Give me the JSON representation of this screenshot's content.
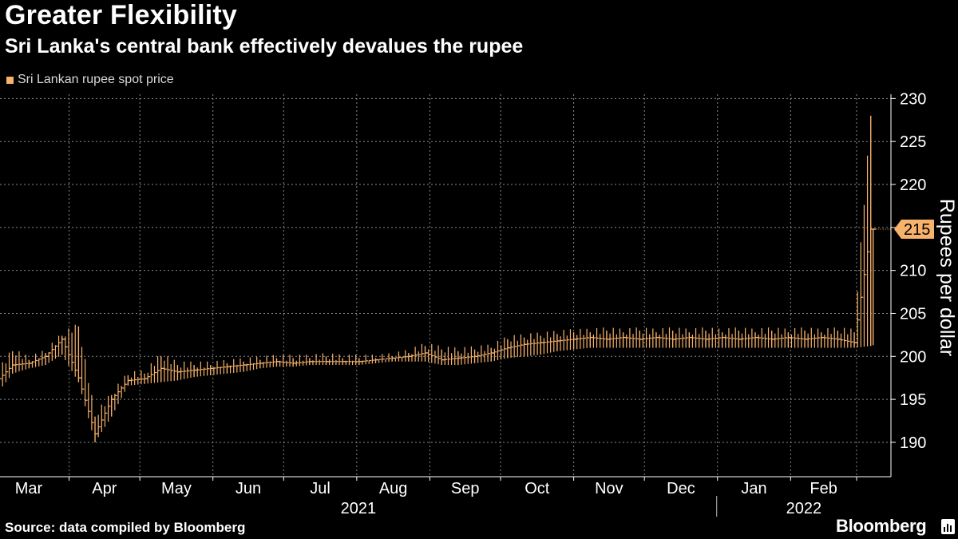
{
  "header": {
    "title": "Greater Flexibility",
    "subtitle": "Sri Lanka's central bank effectively devalues the rupee"
  },
  "legend": {
    "label": "Sri Lankan rupee spot price",
    "color": "#f7b26b"
  },
  "footer": {
    "source": "Source: data compiled by Bloomberg",
    "brand": "Bloomberg"
  },
  "chart_data": {
    "type": "line",
    "style": "ohlc-bars",
    "title": "Greater Flexibility",
    "subtitle": "Sri Lanka's central bank effectively devalues the rupee",
    "ylabel": "Rupees per dollar",
    "xlabel": "",
    "y_axis_side": "right",
    "ylim": [
      186,
      230.5
    ],
    "y_ticks": [
      190,
      195,
      200,
      205,
      210,
      215,
      220,
      225,
      230
    ],
    "y_tick_labels": [
      "190",
      "195",
      "200",
      "205",
      "210",
      "215",
      "220",
      "225",
      "230"
    ],
    "grid": true,
    "series_color": "#f7b26b",
    "last_value_label": "215",
    "last_value": 214.8,
    "month_labels": [
      "Mar",
      "Apr",
      "May",
      "Jun",
      "Jul",
      "Aug",
      "Sep",
      "Oct",
      "Nov",
      "Dec",
      "Jan",
      "Feb"
    ],
    "year_labels": [
      "2021",
      "2022"
    ],
    "x": [
      "2021-03-01",
      "2021-03-08",
      "2021-03-15",
      "2021-03-22",
      "2021-03-29",
      "2021-04-05",
      "2021-04-12",
      "2021-04-19",
      "2021-04-26",
      "2021-05-03",
      "2021-05-10",
      "2021-05-17",
      "2021-05-24",
      "2021-05-31",
      "2021-06-07",
      "2021-06-14",
      "2021-06-21",
      "2021-06-28",
      "2021-07-05",
      "2021-07-12",
      "2021-07-19",
      "2021-07-26",
      "2021-08-02",
      "2021-08-09",
      "2021-08-16",
      "2021-08-23",
      "2021-08-30",
      "2021-09-06",
      "2021-09-13",
      "2021-09-20",
      "2021-09-27",
      "2021-10-04",
      "2021-10-11",
      "2021-10-18",
      "2021-10-25",
      "2021-11-01",
      "2021-11-08",
      "2021-11-15",
      "2021-11-22",
      "2021-11-29",
      "2021-12-06",
      "2021-12-13",
      "2021-12-20",
      "2021-12-27",
      "2022-01-03",
      "2022-01-10",
      "2022-01-17",
      "2022-01-24",
      "2022-01-31",
      "2022-02-07",
      "2022-02-14",
      "2022-02-21",
      "2022-02-28",
      "2022-03-07",
      "2022-03-08"
    ],
    "series": [
      {
        "name": "Sri Lankan rupee spot price",
        "low": [
          195.5,
          198.0,
          198.6,
          199.0,
          200.2,
          197.0,
          190.0,
          193.0,
          196.6,
          196.8,
          197.0,
          197.2,
          197.6,
          197.8,
          198.0,
          198.2,
          198.6,
          198.8,
          198.8,
          199.0,
          199.0,
          199.0,
          199.0,
          199.2,
          199.4,
          199.4,
          199.4,
          199.0,
          199.0,
          199.2,
          199.4,
          199.8,
          200.0,
          200.2,
          200.6,
          200.8,
          201.0,
          201.0,
          201.0,
          201.0,
          201.0,
          201.0,
          201.0,
          201.0,
          201.0,
          201.0,
          201.0,
          201.0,
          201.0,
          201.0,
          201.0,
          201.0,
          201.0,
          201.2,
          201.3
        ],
        "high": [
          197.8,
          200.6,
          199.6,
          200.4,
          202.4,
          203.5,
          193.0,
          195.5,
          197.8,
          198.0,
          200.0,
          199.0,
          199.0,
          199.0,
          199.2,
          199.4,
          199.6,
          199.8,
          199.8,
          199.8,
          200.0,
          199.8,
          199.8,
          199.8,
          200.0,
          200.4,
          201.2,
          200.8,
          200.6,
          200.8,
          201.0,
          202.0,
          202.2,
          202.4,
          202.6,
          202.8,
          202.8,
          203.0,
          202.8,
          203.0,
          202.8,
          203.0,
          202.8,
          203.0,
          202.8,
          203.0,
          202.8,
          203.0,
          202.8,
          203.0,
          202.8,
          203.0,
          202.8,
          228.0,
          214.8
        ],
        "close": [
          197.0,
          199.0,
          199.2,
          200.0,
          202.0,
          197.5,
          191.0,
          195.0,
          197.2,
          197.4,
          198.6,
          198.2,
          198.4,
          198.6,
          198.8,
          199.0,
          199.2,
          199.4,
          199.2,
          199.4,
          199.4,
          199.4,
          199.4,
          199.6,
          199.8,
          200.0,
          200.4,
          199.6,
          199.8,
          200.0,
          200.4,
          201.0,
          201.4,
          201.6,
          201.8,
          202.0,
          202.2,
          202.0,
          202.2,
          202.0,
          202.2,
          202.0,
          202.2,
          202.0,
          202.2,
          202.0,
          202.2,
          202.0,
          202.2,
          202.0,
          202.2,
          202.0,
          201.6,
          214.8,
          214.8
        ]
      }
    ]
  }
}
